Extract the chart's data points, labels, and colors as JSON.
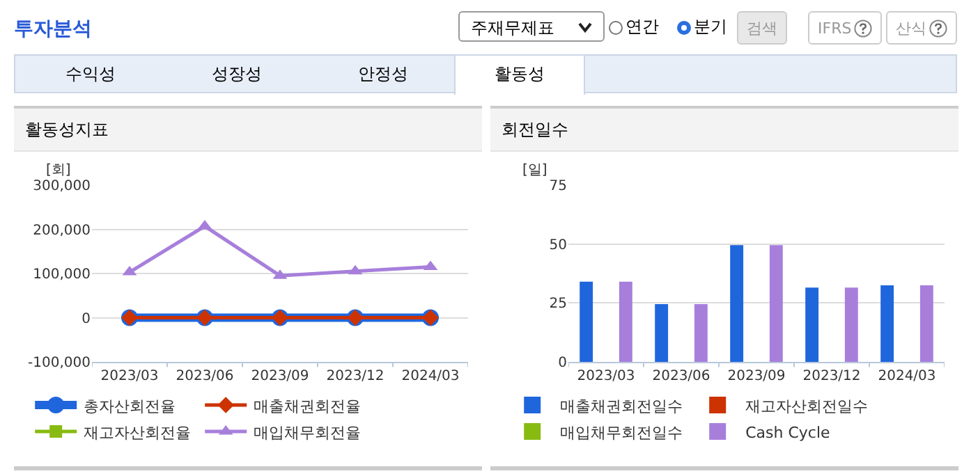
{
  "chart_data": [
    {
      "type": "other",
      "title": "투자분석",
      "annotations": [
        "주재무제표",
        "연간",
        "분기",
        "검색",
        "IFRS",
        "산식",
        "수익성",
        "성장성",
        "안정성",
        "활동성"
      ]
    },
    {
      "type": "line",
      "title": "활동성지표",
      "ylabel": "[회]",
      "categories": [
        "2023/03",
        "2023/06",
        "2023/09",
        "2023/12",
        "2024/03"
      ],
      "ylim": [
        -100000,
        300000
      ],
      "yticks": [
        {
          "value": -100000,
          "label": "-100,000"
        },
        0,
        {
          "value": 100000,
          "label": "100,000"
        },
        {
          "value": 200000,
          "label": "200,000"
        },
        {
          "value": 300000,
          "label": "300,000"
        }
      ],
      "grid": "y",
      "legend": "bottom",
      "series": [
        {
          "name": "총자산회전율",
          "color": "#1f66dd",
          "marker": "circle",
          "values": [
            0,
            0,
            0,
            0,
            0
          ]
        },
        {
          "name": "매출채권회전율",
          "color": "#cc3300",
          "marker": "diamond",
          "values": [
            0,
            0,
            0,
            0,
            0
          ]
        },
        {
          "name": "재고자산회전율",
          "color": "#88bb11",
          "marker": "square",
          "values": [
            null,
            null,
            null,
            null,
            null
          ]
        },
        {
          "name": "매입채무회전율",
          "color": "#a77fdb",
          "marker": "triangle",
          "values": [
            103000,
            207000,
            95000,
            105000,
            115000
          ]
        }
      ]
    },
    {
      "type": "bar",
      "title": "회전일수",
      "ylabel": "[일]",
      "categories": [
        "2023/03",
        "2023/06",
        "2023/09",
        "2023/12",
        "2024/03"
      ],
      "ylim": [
        0,
        75
      ],
      "yticks": [
        0,
        25,
        50,
        75
      ],
      "grid": "y",
      "legend": "bottom",
      "series": [
        {
          "name": "매출채권회전일수",
          "color": "#1f66dd",
          "values": [
            34,
            24.5,
            49.5,
            31.5,
            32.5
          ]
        },
        {
          "name": "재고자산회전일수",
          "color": "#cc3300",
          "values": [
            null,
            null,
            null,
            null,
            null
          ]
        },
        {
          "name": "매입채무회전일수",
          "color": "#88bb11",
          "values": [
            null,
            null,
            null,
            null,
            null
          ]
        },
        {
          "name": "Cash Cycle",
          "color": "#a77fdb",
          "values": [
            34,
            24.5,
            49.5,
            31.5,
            32.5
          ]
        }
      ]
    }
  ]
}
